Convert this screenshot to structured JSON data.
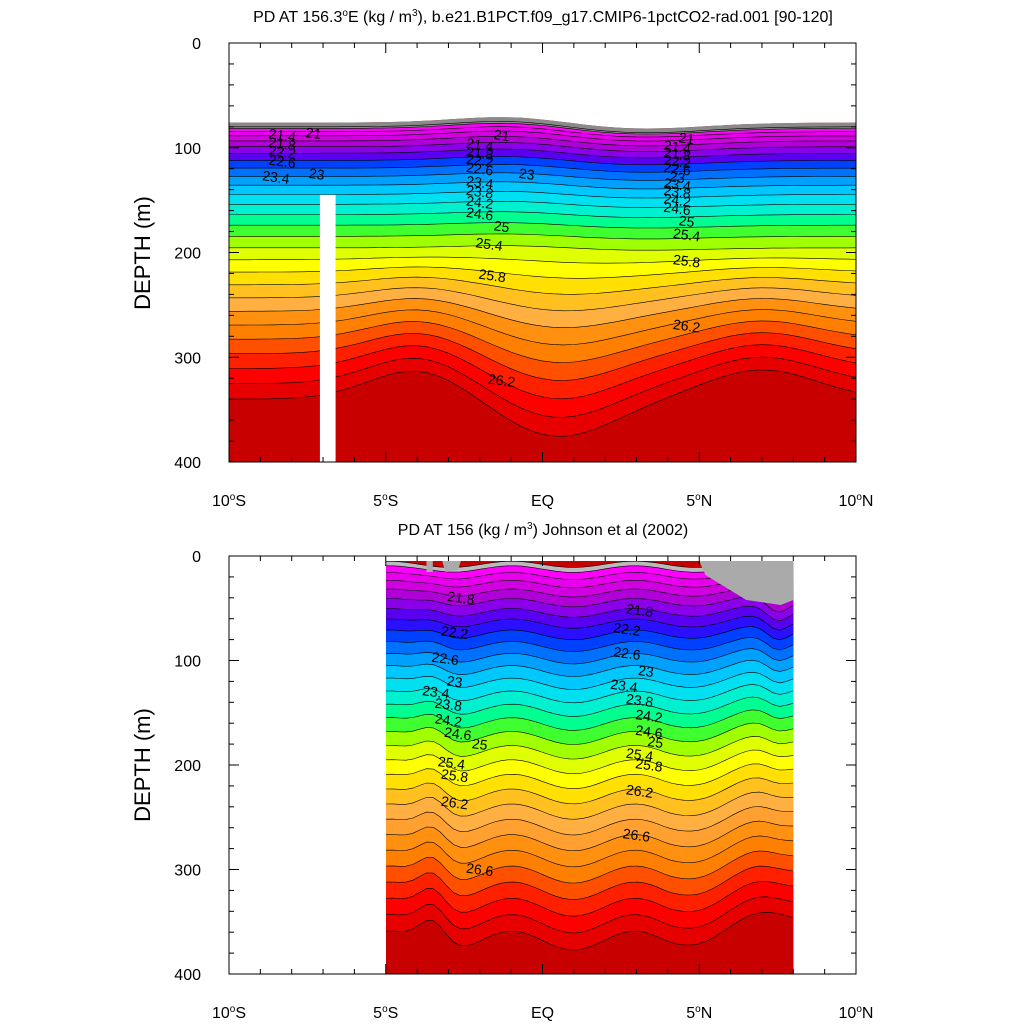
{
  "palette": [
    "#bbbbbb",
    "#ff00ff",
    "#e800ee",
    "#d000e0",
    "#b000d8",
    "#8a00e8",
    "#5a00f0",
    "#2a10ff",
    "#0040ff",
    "#0070ff",
    "#00a0ff",
    "#00c8ff",
    "#00e0f0",
    "#00f0d0",
    "#00ff90",
    "#40ff30",
    "#a0ff00",
    "#e0ff00",
    "#ffff00",
    "#ffe000",
    "#ffc020",
    "#ffb040",
    "#ffa030",
    "#ff9010",
    "#ff8000",
    "#ff5000",
    "#ff2000",
    "#ff0000",
    "#e60000",
    "#c80000"
  ],
  "gray": "#8a8a8a",
  "chart_data": [
    {
      "type": "contour",
      "title": "PD AT 156.3",
      "title_degree": "o",
      "title_units_prefix": "E (kg / m",
      "title_units_sup": "3",
      "title_suffix": "), b.e21.B1PCT.f09_g17.CMIP6-1pctCO2-rad.001 [90-120]",
      "ylabel": "DEPTH (m)",
      "ylim": [
        0,
        400
      ],
      "yticks": [
        "0",
        "100",
        "200",
        "300",
        "400"
      ],
      "xlim": [
        -10,
        10
      ],
      "xticks": [
        {
          "v": -10,
          "label": "10",
          "deg": "o",
          "hemi": "S"
        },
        {
          "v": -5,
          "label": "5",
          "deg": "o",
          "hemi": "S"
        },
        {
          "v": 0,
          "label": "EQ",
          "deg": "",
          "hemi": ""
        },
        {
          "v": 5,
          "label": "5",
          "deg": "o",
          "hemi": "N"
        },
        {
          "v": 10,
          "label": "10",
          "deg": "o",
          "hemi": "N"
        }
      ],
      "contour_labels": [
        "21",
        "21.4",
        "21.8",
        "22.2",
        "22.6",
        "23",
        "23.4",
        "23.8",
        "24.2",
        "24.6",
        "25",
        "25.4",
        "25.8",
        "26.2"
      ],
      "missing_column": {
        "x0": -7.1,
        "x1": -6.6,
        "depth_top": 145
      },
      "labels": [
        {
          "t": "21",
          "x": -7.3,
          "d": 86
        },
        {
          "t": "21.4",
          "x": -8.3,
          "d": 88
        },
        {
          "t": "21.8",
          "x": -8.3,
          "d": 96
        },
        {
          "t": "22.2",
          "x": -8.3,
          "d": 104
        },
        {
          "t": "22.6",
          "x": -8.3,
          "d": 113
        },
        {
          "t": "23",
          "x": -7.2,
          "d": 125
        },
        {
          "t": "23.4",
          "x": -8.5,
          "d": 128
        },
        {
          "t": "21",
          "x": -1.3,
          "d": 88
        },
        {
          "t": "21.4",
          "x": -2.0,
          "d": 97
        },
        {
          "t": "21.8",
          "x": -2.0,
          "d": 105
        },
        {
          "t": "22.2",
          "x": -2.0,
          "d": 112
        },
        {
          "t": "22.6",
          "x": -2.0,
          "d": 120
        },
        {
          "t": "23",
          "x": -0.5,
          "d": 125
        },
        {
          "t": "23.4",
          "x": -2.0,
          "d": 133
        },
        {
          "t": "23.8",
          "x": -2.0,
          "d": 142
        },
        {
          "t": "24.2",
          "x": -2.0,
          "d": 152
        },
        {
          "t": "24.6",
          "x": -2.0,
          "d": 163
        },
        {
          "t": "25",
          "x": -1.3,
          "d": 175
        },
        {
          "t": "25.4",
          "x": -1.7,
          "d": 192
        },
        {
          "t": "25.8",
          "x": -1.6,
          "d": 222
        },
        {
          "t": "26.2",
          "x": -1.3,
          "d": 322
        },
        {
          "t": "21",
          "x": 4.6,
          "d": 91
        },
        {
          "t": "21.4",
          "x": 4.3,
          "d": 99
        },
        {
          "t": "21.8",
          "x": 4.3,
          "d": 106
        },
        {
          "t": "22.2",
          "x": 4.3,
          "d": 113
        },
        {
          "t": "22.6",
          "x": 4.3,
          "d": 120
        },
        {
          "t": "23",
          "x": 4.3,
          "d": 128
        },
        {
          "t": "23.4",
          "x": 4.3,
          "d": 135
        },
        {
          "t": "23.8",
          "x": 4.3,
          "d": 142
        },
        {
          "t": "24.2",
          "x": 4.3,
          "d": 150
        },
        {
          "t": "24.6",
          "x": 4.3,
          "d": 158
        },
        {
          "t": "25",
          "x": 4.6,
          "d": 170
        },
        {
          "t": "25.4",
          "x": 4.6,
          "d": 183
        },
        {
          "t": "25.8",
          "x": 4.6,
          "d": 208
        },
        {
          "t": "26.2",
          "x": 4.6,
          "d": 270
        }
      ]
    },
    {
      "type": "contour",
      "title": "PD AT 156 (kg / m",
      "title_units_sup": "3",
      "title_suffix": ") Johnson et al (2002)",
      "ylabel": "DEPTH (m)",
      "ylim": [
        0,
        400
      ],
      "yticks": [
        "0",
        "100",
        "200",
        "300",
        "400"
      ],
      "xlim": [
        -10,
        10
      ],
      "xticks": [
        {
          "v": -10,
          "label": "10",
          "deg": "o",
          "hemi": "S"
        },
        {
          "v": -5,
          "label": "5",
          "deg": "o",
          "hemi": "S"
        },
        {
          "v": 0,
          "label": "EQ",
          "deg": "",
          "hemi": ""
        },
        {
          "v": 5,
          "label": "5",
          "deg": "o",
          "hemi": "N"
        },
        {
          "v": 10,
          "label": "10",
          "deg": "o",
          "hemi": "N"
        }
      ],
      "data_extent": [
        -5,
        8
      ],
      "contour_labels": [
        "21.8",
        "22.2",
        "22.6",
        "23",
        "23.4",
        "23.8",
        "24.2",
        "24.6",
        "25",
        "25.4",
        "25.8",
        "26.2",
        "26.6"
      ],
      "labels": [
        {
          "t": "21.8",
          "x": -2.6,
          "d": 40
        },
        {
          "t": "22.2",
          "x": -2.8,
          "d": 73
        },
        {
          "t": "22.6",
          "x": -3.1,
          "d": 98
        },
        {
          "t": "23",
          "x": -2.8,
          "d": 120
        },
        {
          "t": "23.4",
          "x": -3.4,
          "d": 130
        },
        {
          "t": "23.8",
          "x": -3.0,
          "d": 142
        },
        {
          "t": "24.2",
          "x": -3.0,
          "d": 157
        },
        {
          "t": "24.6",
          "x": -2.7,
          "d": 170
        },
        {
          "t": "25",
          "x": -2.0,
          "d": 180
        },
        {
          "t": "25.4",
          "x": -2.9,
          "d": 198
        },
        {
          "t": "25.8",
          "x": -2.8,
          "d": 210
        },
        {
          "t": "26.2",
          "x": -2.8,
          "d": 236
        },
        {
          "t": "26.6",
          "x": -2.0,
          "d": 300
        },
        {
          "t": "21.8",
          "x": 3.1,
          "d": 52
        },
        {
          "t": "22.2",
          "x": 2.7,
          "d": 70
        },
        {
          "t": "22.6",
          "x": 2.7,
          "d": 93
        },
        {
          "t": "23",
          "x": 3.3,
          "d": 110
        },
        {
          "t": "23.4",
          "x": 2.6,
          "d": 124
        },
        {
          "t": "23.8",
          "x": 3.1,
          "d": 138
        },
        {
          "t": "24.2",
          "x": 3.4,
          "d": 153
        },
        {
          "t": "24.6",
          "x": 3.4,
          "d": 168
        },
        {
          "t": "25",
          "x": 3.6,
          "d": 178
        },
        {
          "t": "25.4",
          "x": 3.1,
          "d": 190
        },
        {
          "t": "25.8",
          "x": 3.4,
          "d": 200
        },
        {
          "t": "26.2",
          "x": 3.1,
          "d": 225
        },
        {
          "t": "26.6",
          "x": 3.0,
          "d": 267
        }
      ]
    }
  ]
}
